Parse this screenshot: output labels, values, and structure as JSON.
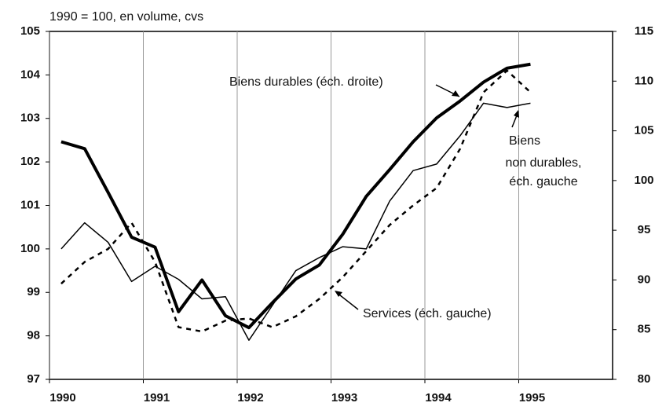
{
  "chart_data": {
    "type": "line",
    "subtitle": "1990 = 100, en volume, cvs",
    "x": [
      1990.125,
      1990.375,
      1990.625,
      1990.875,
      1991.125,
      1991.375,
      1991.625,
      1991.875,
      1992.125,
      1992.375,
      1992.625,
      1992.875,
      1993.125,
      1993.375,
      1993.625,
      1993.875,
      1994.125,
      1994.375,
      1994.625,
      1994.875,
      1995.125
    ],
    "xlim": [
      1990,
      1996
    ],
    "xticks": [
      1990,
      1991,
      1992,
      1993,
      1994,
      1995
    ],
    "ylim": [
      97,
      105
    ],
    "yticks": [
      97,
      98,
      99,
      100,
      101,
      102,
      103,
      104,
      105
    ],
    "y2lim": [
      80,
      115
    ],
    "y2ticks": [
      80,
      85,
      90,
      95,
      100,
      105,
      110,
      115
    ],
    "grid": true,
    "series": [
      {
        "name": "Biens durables (éch. droite)",
        "color": "#000000",
        "axis": "y2",
        "line_width": 4,
        "dash": false,
        "values": [
          103.9,
          103.2,
          98.8,
          94.3,
          93.3,
          86.8,
          90.0,
          86.4,
          85.2,
          87.7,
          90.1,
          91.5,
          94.6,
          98.4,
          101.1,
          103.9,
          106.3,
          108.0,
          109.9,
          111.3,
          111.7
        ]
      },
      {
        "name": "Biens non durables, éch. gauche",
        "color": "#000000",
        "axis": "y",
        "line_width": 1.5,
        "dash": false,
        "values": [
          100.0,
          100.6,
          100.15,
          99.25,
          99.6,
          99.3,
          98.85,
          98.9,
          97.9,
          98.7,
          99.5,
          99.8,
          100.05,
          100.0,
          101.1,
          101.8,
          101.95,
          102.6,
          103.35,
          103.25,
          103.35
        ]
      },
      {
        "name": "Services (éch. gauche)",
        "color": "#000000",
        "axis": "y",
        "line_width": 2.5,
        "dash": true,
        "values": [
          99.2,
          99.7,
          100.0,
          100.6,
          99.7,
          98.2,
          98.1,
          98.35,
          98.4,
          98.2,
          98.45,
          98.85,
          99.35,
          99.95,
          100.55,
          101.0,
          101.4,
          102.3,
          103.6,
          104.1,
          103.6
        ]
      }
    ],
    "annotations": [
      {
        "lines": [
          "Biens durables (éch. droite)"
        ]
      },
      {
        "lines": [
          "Biens",
          "non durables,",
          "éch. gauche"
        ]
      },
      {
        "lines": [
          "Services (éch. gauche)"
        ]
      }
    ]
  }
}
